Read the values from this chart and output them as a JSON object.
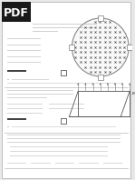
{
  "bg_color": "#e8e8e8",
  "page_color": "#ffffff",
  "pdf_bg": "#1a1a1a",
  "pdf_text_color": "#ffffff",
  "dot_color": "#444444",
  "circle_edge": "#888888",
  "circle_fill": "#f8f8f8",
  "text_dark": "#222222",
  "text_mid": "#555555",
  "text_light": "#888888",
  "line_dark": "#333333",
  "line_mid": "#777777",
  "line_light": "#bbbbbb",
  "bar_color": "#aaaaaa",
  "frame_color": "#555555",
  "arrow_color": "#333333",
  "respuesta_color": "#000000",
  "separator_color": "#bbbbbb"
}
